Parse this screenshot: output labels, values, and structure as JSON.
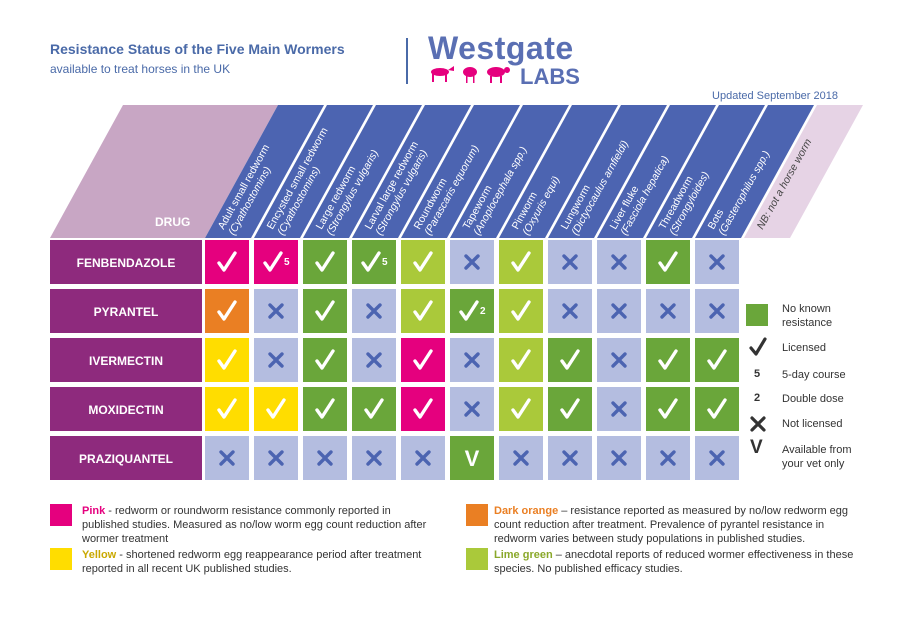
{
  "header": {
    "title": "Resistance Status of the Five Main Wormers",
    "subtitle": "available to treat horses in the UK",
    "logo_name": "Westgate",
    "logo_labs": "LABS",
    "updated": "Updated September 2018"
  },
  "table": {
    "drug_label": "DRUG",
    "columns": [
      {
        "line1": "Adult  small redworm",
        "line2": "(Cyathostomins)"
      },
      {
        "line1": "Encysted small redworm",
        "line2": "(Cyathostomins)"
      },
      {
        "line1": "Large redworm",
        "line2": "(Strongylus vulgaris)"
      },
      {
        "line1": "Larval large redworm",
        "line2": "(Strongylus vulgaris)"
      },
      {
        "line1": "Roundworm",
        "line2": "(Parascaris equorum)"
      },
      {
        "line1": "Tapeworm",
        "line2": "(Anoplocephala spp.)"
      },
      {
        "line1": "Pinworm",
        "line2": "(Oxyuris equi)"
      },
      {
        "line1": "Lungworm",
        "line2": "(Dictyocaulus arnfieldi)"
      },
      {
        "line1": "Liver fluke",
        "line2": "(Fasciola hepatica)"
      },
      {
        "line1": "Threadworm",
        "line2": "(Strongyloides)"
      },
      {
        "line1": "Bots",
        "line2": "(Gasterophilus spp.)"
      },
      {
        "line1": "NB: not a horse worm",
        "line2": ""
      }
    ],
    "rows": [
      {
        "drug": "FENBENDAZOLE",
        "cells": [
          {
            "c": "pink",
            "s": "check"
          },
          {
            "c": "pink",
            "s": "check",
            "n": "5"
          },
          {
            "c": "green",
            "s": "check"
          },
          {
            "c": "green",
            "s": "check",
            "n": "5"
          },
          {
            "c": "lime",
            "s": "check"
          },
          {
            "c": "light",
            "s": "x"
          },
          {
            "c": "lime",
            "s": "check"
          },
          {
            "c": "light",
            "s": "x"
          },
          {
            "c": "light",
            "s": "x"
          },
          {
            "c": "green",
            "s": "check"
          },
          {
            "c": "light",
            "s": "x"
          }
        ]
      },
      {
        "drug": "PYRANTEL",
        "cells": [
          {
            "c": "orange",
            "s": "check"
          },
          {
            "c": "light",
            "s": "x"
          },
          {
            "c": "green",
            "s": "check"
          },
          {
            "c": "light",
            "s": "x"
          },
          {
            "c": "lime",
            "s": "check"
          },
          {
            "c": "green",
            "s": "check",
            "n": "2"
          },
          {
            "c": "lime",
            "s": "check"
          },
          {
            "c": "light",
            "s": "x"
          },
          {
            "c": "light",
            "s": "x"
          },
          {
            "c": "light",
            "s": "x"
          },
          {
            "c": "light",
            "s": "x"
          }
        ]
      },
      {
        "drug": "IVERMECTIN",
        "cells": [
          {
            "c": "yellow",
            "s": "check"
          },
          {
            "c": "light",
            "s": "x"
          },
          {
            "c": "green",
            "s": "check"
          },
          {
            "c": "light",
            "s": "x"
          },
          {
            "c": "pink",
            "s": "check"
          },
          {
            "c": "light",
            "s": "x"
          },
          {
            "c": "lime",
            "s": "check"
          },
          {
            "c": "green",
            "s": "check"
          },
          {
            "c": "light",
            "s": "x"
          },
          {
            "c": "green",
            "s": "check"
          },
          {
            "c": "green",
            "s": "check"
          }
        ]
      },
      {
        "drug": "MOXIDECTIN",
        "cells": [
          {
            "c": "yellow",
            "s": "check"
          },
          {
            "c": "yellow",
            "s": "check"
          },
          {
            "c": "green",
            "s": "check"
          },
          {
            "c": "green",
            "s": "check"
          },
          {
            "c": "pink",
            "s": "check"
          },
          {
            "c": "light",
            "s": "x"
          },
          {
            "c": "lime",
            "s": "check"
          },
          {
            "c": "green",
            "s": "check"
          },
          {
            "c": "light",
            "s": "x"
          },
          {
            "c": "green",
            "s": "check"
          },
          {
            "c": "green",
            "s": "check"
          }
        ]
      },
      {
        "drug": "PRAZIQUANTEL",
        "cells": [
          {
            "c": "light",
            "s": "x"
          },
          {
            "c": "light",
            "s": "x"
          },
          {
            "c": "light",
            "s": "x"
          },
          {
            "c": "light",
            "s": "x"
          },
          {
            "c": "light",
            "s": "x"
          },
          {
            "c": "green",
            "s": "v"
          },
          {
            "c": "light",
            "s": "x"
          },
          {
            "c": "light",
            "s": "x"
          },
          {
            "c": "light",
            "s": "x"
          },
          {
            "c": "light",
            "s": "x"
          },
          {
            "c": "light",
            "s": "x"
          }
        ]
      }
    ]
  },
  "colors": {
    "pink": "#e5007e",
    "green": "#6aa63a",
    "lime": "#aac93a",
    "yellow": "#ffdd00",
    "orange": "#ea7f23",
    "light": "#b4bde0",
    "purple": "#8e2a7d",
    "header_blue": "#4c64b1",
    "header_pale": "#c8a6c4",
    "symbol_blue": "#4c64b1"
  },
  "legend": {
    "no_resistance_line1": "No known",
    "no_resistance_line2": "resistance",
    "licensed": "Licensed",
    "five_symbol": "5",
    "five_day": "5-day course",
    "two_symbol": "2",
    "double_dose": "Double dose",
    "not_licensed": "Not licensed",
    "vet_symbol": "V",
    "vet_line1": "Available from",
    "vet_line2": "your vet only"
  },
  "notes": {
    "pink_title": "Pink",
    "pink_text": " - redworm or roundworm resistance commonly reported in published studies. Measured as no/low worm egg count reduction after wormer treatment",
    "yellow_title": "Yellow",
    "yellow_text": " - shortened redworm egg reappearance period after treatment reported in all recent UK published studies.",
    "orange_title": "Dark orange",
    "orange_text": " – resistance reported as measured by no/low redworm egg count reduction after treatment. Prevalence of pyrantel resistance in redworm varies between study populations in published studies.",
    "lime_title": "Lime green",
    "lime_text": " – anecdotal reports of reduced wormer effectiveness in these species. No published efficacy studies."
  }
}
